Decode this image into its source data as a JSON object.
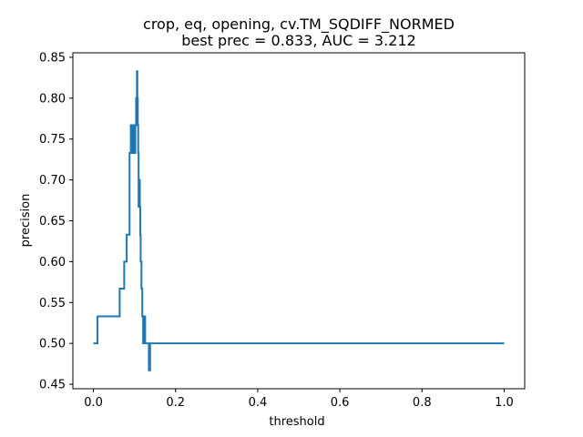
{
  "chart_data": {
    "type": "line",
    "title_line1": "crop, eq, opening, cv.TM_SQDIFF_NORMED",
    "title_line2": "best prec = 0.833, AUC = 3.212",
    "xlabel": "threshold",
    "ylabel": "precision",
    "xlim": [
      -0.05,
      1.05
    ],
    "ylim": [
      0.4445,
      0.8555
    ],
    "xticks": [
      0.0,
      0.2,
      0.4,
      0.6,
      0.8,
      1.0
    ],
    "xtick_labels": [
      "0.0",
      "0.2",
      "0.4",
      "0.6",
      "0.8",
      "1.0"
    ],
    "yticks": [
      0.45,
      0.5,
      0.55,
      0.6,
      0.65,
      0.7,
      0.75,
      0.8,
      0.85
    ],
    "ytick_labels": [
      "0.45",
      "0.50",
      "0.55",
      "0.60",
      "0.65",
      "0.70",
      "0.75",
      "0.80",
      "0.85"
    ],
    "grid": false,
    "series_color": "#1f77b4",
    "series": [
      {
        "x": [
          0.0,
          0.01,
          0.01,
          0.064,
          0.064,
          0.075,
          0.075,
          0.081,
          0.081,
          0.088,
          0.088,
          0.091,
          0.091,
          0.094,
          0.094,
          0.096,
          0.096,
          0.099,
          0.099,
          0.102,
          0.102,
          0.104,
          0.104,
          0.106,
          0.106,
          0.107,
          0.107,
          0.108,
          0.108,
          0.109,
          0.109,
          0.11,
          0.11,
          0.112,
          0.112,
          0.113,
          0.113,
          0.114,
          0.114,
          0.115,
          0.115,
          0.117,
          0.117,
          0.119,
          0.119,
          0.121,
          0.121,
          0.124,
          0.124,
          0.126,
          0.126,
          0.128,
          0.128,
          0.135,
          0.135,
          0.136,
          0.136,
          0.137,
          0.137,
          0.138,
          0.138,
          0.139,
          0.139,
          1.0
        ],
        "y": [
          0.5,
          0.5,
          0.533,
          0.533,
          0.567,
          0.567,
          0.6,
          0.6,
          0.633,
          0.633,
          0.733,
          0.733,
          0.767,
          0.767,
          0.733,
          0.733,
          0.767,
          0.767,
          0.733,
          0.733,
          0.767,
          0.767,
          0.8,
          0.8,
          0.833,
          0.833,
          0.8,
          0.8,
          0.767,
          0.767,
          0.733,
          0.733,
          0.667,
          0.667,
          0.7,
          0.7,
          0.667,
          0.667,
          0.633,
          0.633,
          0.6,
          0.6,
          0.567,
          0.567,
          0.533,
          0.533,
          0.5,
          0.5,
          0.533,
          0.533,
          0.5,
          0.5,
          0.5,
          0.5,
          0.467,
          0.467,
          0.5,
          0.5,
          0.467,
          0.467,
          0.5,
          0.5,
          0.5,
          0.5
        ]
      }
    ]
  }
}
